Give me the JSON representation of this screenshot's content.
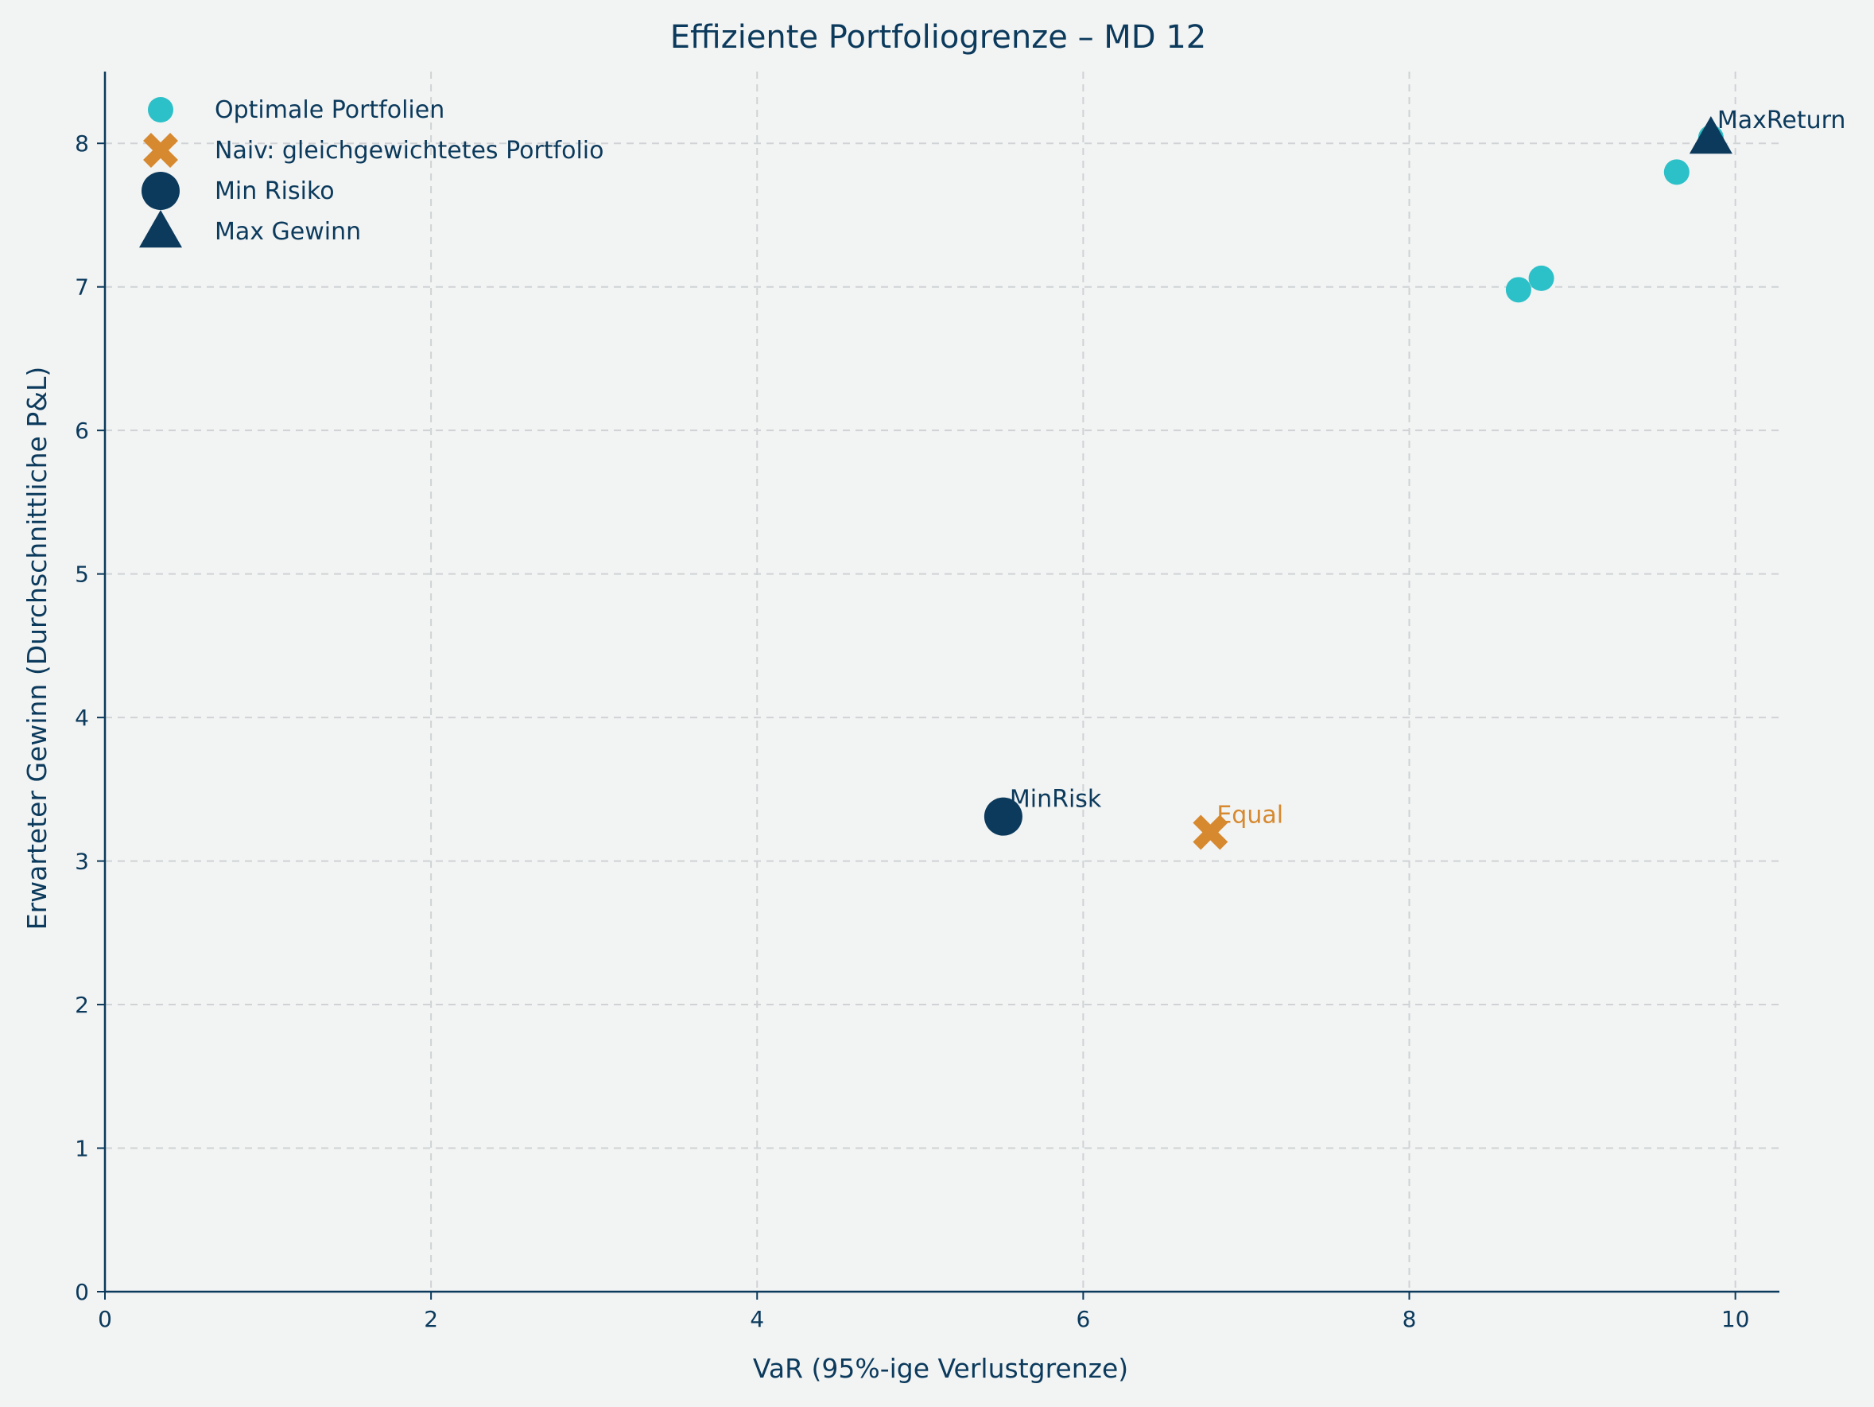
{
  "chart_data": {
    "type": "scatter",
    "title": "Effiziente Portfoliogrenze – MD 12",
    "xlabel": "VaR (95%-ige Verlustgrenze)",
    "ylabel": "Erwarteter Gewinn (Durchschnittliche P&L)",
    "xlim": [
      0,
      10.27
    ],
    "ylim": [
      0,
      8.5
    ],
    "xticks": [
      "0",
      "2",
      "4",
      "6",
      "8",
      "10"
    ],
    "yticks": [
      "0",
      "1",
      "2",
      "3",
      "4",
      "5",
      "6",
      "7",
      "8"
    ],
    "grid": true,
    "legend_position": "top-left",
    "series": [
      {
        "name": "Optimale Portfolien",
        "marker": "circle",
        "color": "#2cc0c8",
        "points": [
          {
            "x": 8.67,
            "y": 6.98
          },
          {
            "x": 8.81,
            "y": 7.06
          },
          {
            "x": 9.64,
            "y": 7.8
          },
          {
            "x": 9.85,
            "y": 8.04
          }
        ]
      },
      {
        "name": "Naiv: gleichgewichtetes Portfolio",
        "marker": "x",
        "color": "#d6892f",
        "points": [
          {
            "x": 6.78,
            "y": 3.2
          }
        ]
      },
      {
        "name": "Min Risiko",
        "marker": "big-circle",
        "color": "#0b3a5c",
        "points": [
          {
            "x": 5.51,
            "y": 3.31
          }
        ]
      },
      {
        "name": "Max Gewinn",
        "marker": "triangle",
        "color": "#0b3a5c",
        "points": [
          {
            "x": 9.85,
            "y": 8.04
          }
        ]
      }
    ],
    "annotations": [
      {
        "text": "MinRisk",
        "x": 5.51,
        "y": 3.31,
        "color": "#0b3a5c"
      },
      {
        "text": "Equal",
        "x": 6.78,
        "y": 3.2,
        "color": "#d6892f"
      },
      {
        "text": "MaxReturn",
        "x": 9.85,
        "y": 8.04,
        "color": "#0b3a5c"
      }
    ]
  }
}
